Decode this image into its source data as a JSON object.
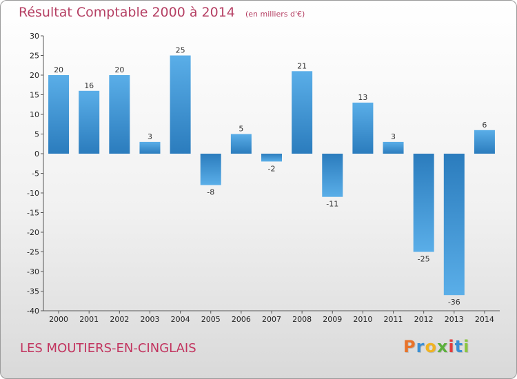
{
  "title": "Résultat Comptable 2000 à 2014",
  "subtitle": "(en milliers d'€)",
  "commune": "LES MOUTIERS-EN-CINGLAIS",
  "logo": {
    "letters": [
      "P",
      "r",
      "o",
      "x",
      "i",
      "t",
      "i"
    ],
    "colors": [
      "#e8732a",
      "#3a8fd4",
      "#f0b323",
      "#5cb03c",
      "#e23c3c",
      "#3a8fd4",
      "#8cc63f"
    ]
  },
  "chart_data": {
    "type": "bar",
    "title": "Résultat Comptable 2000 à 2014",
    "subtitle": "(en milliers d'€)",
    "categories": [
      "2000",
      "2001",
      "2002",
      "2003",
      "2004",
      "2005",
      "2006",
      "2007",
      "2008",
      "2009",
      "2010",
      "2011",
      "2012",
      "2013",
      "2014"
    ],
    "values": [
      20,
      16,
      20,
      3,
      25,
      -8,
      5,
      -2,
      21,
      -11,
      13,
      3,
      -25,
      -36,
      6
    ],
    "ylim": [
      -40,
      30
    ],
    "yticks": [
      30,
      25,
      20,
      15,
      10,
      5,
      0,
      -5,
      -10,
      -15,
      -20,
      -25,
      -30,
      -35,
      -40
    ],
    "grid": false,
    "bar_color_light": "#5aaee8",
    "bar_color_dark": "#2b7cbd"
  }
}
